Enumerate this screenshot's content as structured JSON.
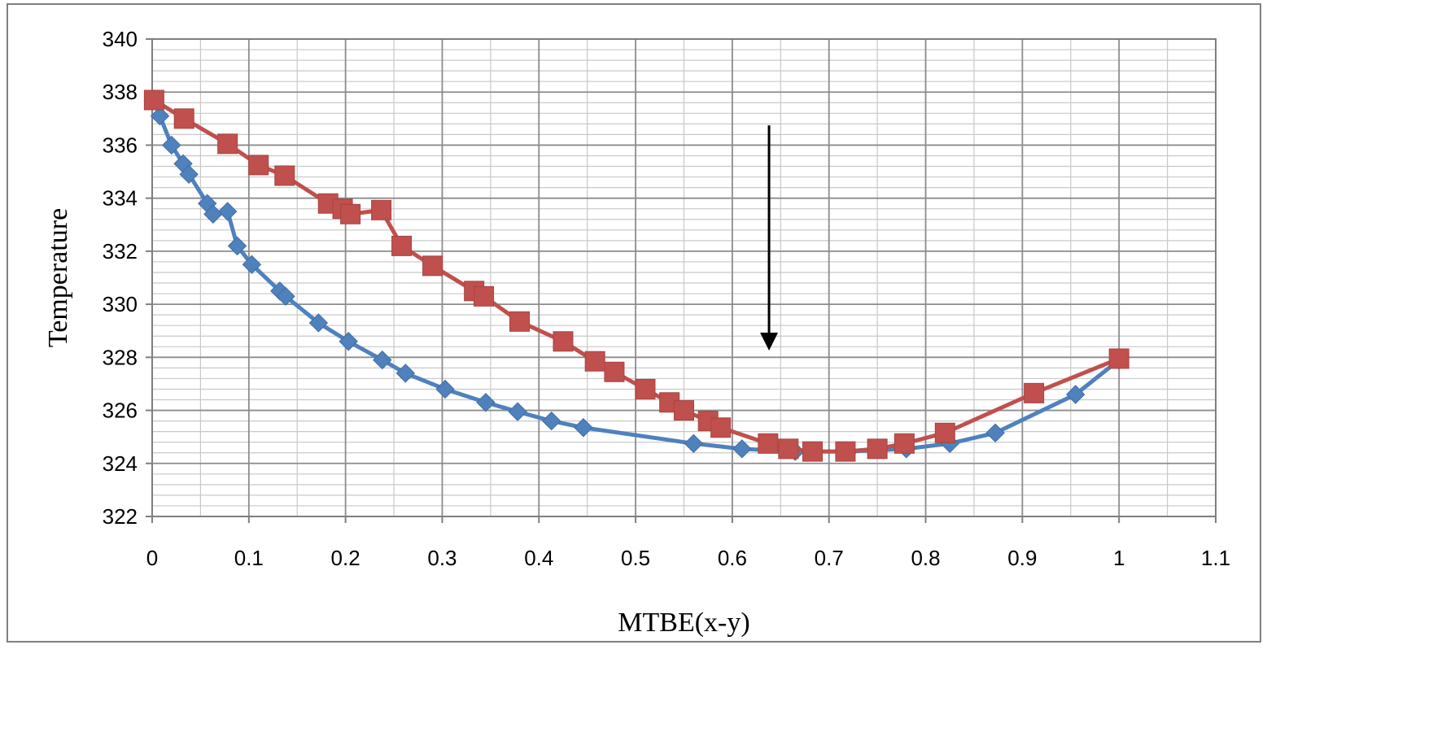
{
  "chart_data": {
    "type": "line",
    "title": "",
    "xlabel": "MTBE(x-y)",
    "ylabel": "Temperature",
    "xlim": [
      0,
      1.1
    ],
    "ylim": [
      322,
      340
    ],
    "x_ticks": [
      "0",
      "0.1",
      "0.2",
      "0.3",
      "0.4",
      "0.5",
      "0.6",
      "0.7",
      "0.8",
      "0.9",
      "1",
      "1.1"
    ],
    "y_ticks": [
      "322",
      "324",
      "326",
      "328",
      "330",
      "332",
      "334",
      "336",
      "338",
      "340"
    ],
    "grid": true,
    "legend": "none",
    "annotation": {
      "type": "arrow",
      "x": 0.638,
      "y_from": 336.5,
      "y_to": 328.5
    },
    "series": [
      {
        "color": "#4f81bd",
        "marker": "diamond",
        "points": [
          [
            0.008,
            337.1
          ],
          [
            0.02,
            336.0
          ],
          [
            0.032,
            335.3
          ],
          [
            0.038,
            334.9
          ],
          [
            0.057,
            333.8
          ],
          [
            0.063,
            333.4
          ],
          [
            0.078,
            333.5
          ],
          [
            0.088,
            332.2
          ],
          [
            0.103,
            331.5
          ],
          [
            0.132,
            330.5
          ],
          [
            0.138,
            330.3
          ],
          [
            0.172,
            329.3
          ],
          [
            0.203,
            328.6
          ],
          [
            0.238,
            327.9
          ],
          [
            0.262,
            327.4
          ],
          [
            0.303,
            326.8
          ],
          [
            0.345,
            326.3
          ],
          [
            0.378,
            325.95
          ],
          [
            0.413,
            325.6
          ],
          [
            0.446,
            325.35
          ],
          [
            0.56,
            324.75
          ],
          [
            0.61,
            324.55
          ],
          [
            0.665,
            324.45
          ],
          [
            0.72,
            324.45
          ],
          [
            0.78,
            324.55
          ],
          [
            0.825,
            324.75
          ],
          [
            0.872,
            325.15
          ],
          [
            0.955,
            326.6
          ],
          [
            1.0,
            327.9
          ]
        ]
      },
      {
        "color": "#c0504d",
        "marker": "square",
        "points": [
          [
            0.002,
            337.7
          ],
          [
            0.033,
            337.0
          ],
          [
            0.078,
            336.05
          ],
          [
            0.11,
            335.25
          ],
          [
            0.137,
            334.85
          ],
          [
            0.182,
            333.8
          ],
          [
            0.197,
            333.6
          ],
          [
            0.205,
            333.4
          ],
          [
            0.237,
            333.55
          ],
          [
            0.258,
            332.2
          ],
          [
            0.29,
            331.45
          ],
          [
            0.333,
            330.5
          ],
          [
            0.343,
            330.3
          ],
          [
            0.38,
            329.35
          ],
          [
            0.425,
            328.6
          ],
          [
            0.458,
            327.85
          ],
          [
            0.478,
            327.45
          ],
          [
            0.51,
            326.8
          ],
          [
            0.535,
            326.3
          ],
          [
            0.55,
            326.0
          ],
          [
            0.575,
            325.6
          ],
          [
            0.588,
            325.35
          ],
          [
            0.637,
            324.75
          ],
          [
            0.658,
            324.55
          ],
          [
            0.683,
            324.45
          ],
          [
            0.717,
            324.45
          ],
          [
            0.75,
            324.55
          ],
          [
            0.778,
            324.75
          ],
          [
            0.82,
            325.15
          ],
          [
            0.912,
            326.65
          ],
          [
            1.0,
            327.95
          ]
        ]
      }
    ]
  }
}
